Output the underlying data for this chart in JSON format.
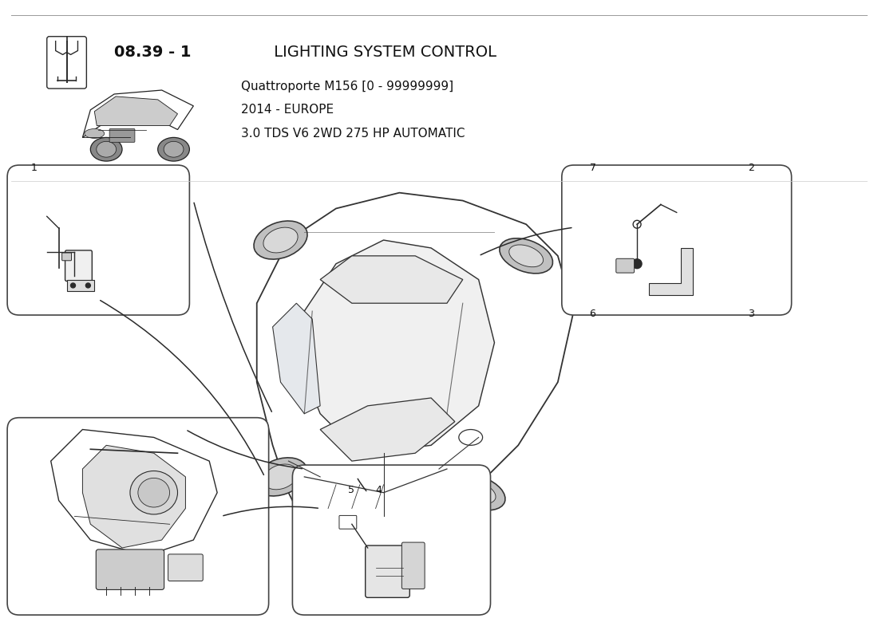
{
  "title_bold": "08.39 - 1",
  "title_normal": " LIGHTING SYSTEM CONTROL",
  "subtitle_line1": "Quattroporte M156 [0 - 99999999]",
  "subtitle_line2": "2014 - EUROPE",
  "subtitle_line3": "3.0 TDS V6 2WD 275 HP AUTOMATIC",
  "bg_color": "#ffffff",
  "lc": "#2a2a2a",
  "tc": "#111111",
  "box_lc": "#444444",
  "fig_w": 11.0,
  "fig_h": 8.0,
  "dpi": 100
}
